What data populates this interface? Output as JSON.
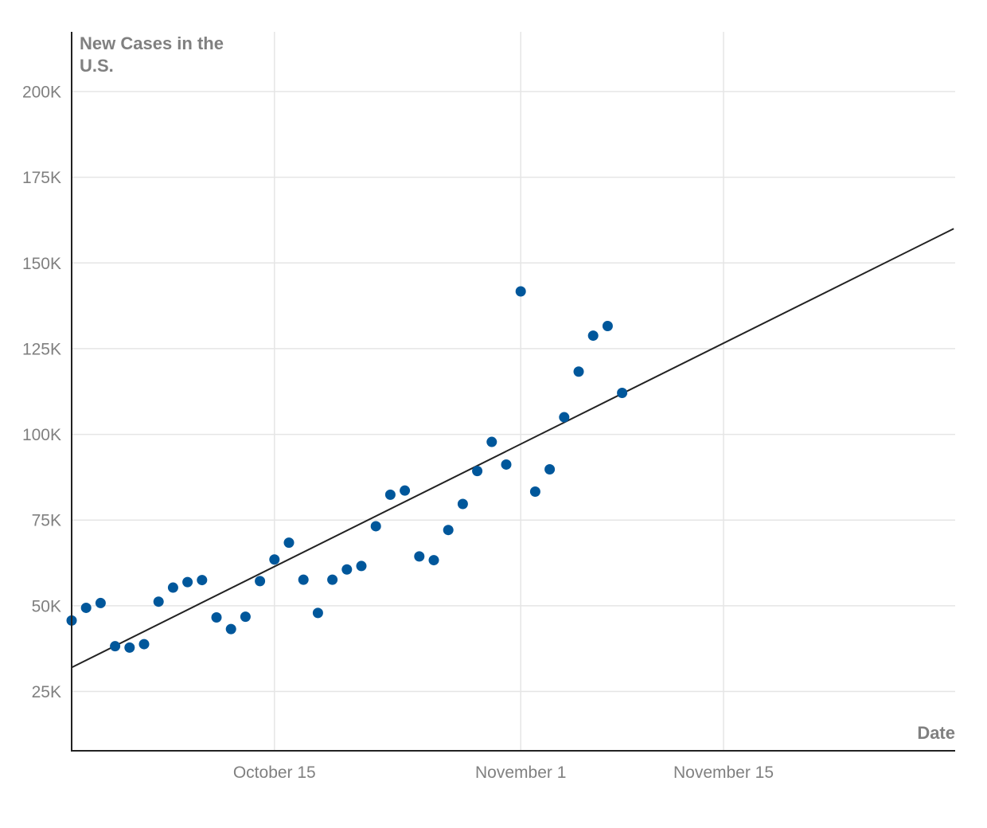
{
  "chart_data": {
    "type": "scatter",
    "title": "",
    "ylabel_lines": [
      "New Cases in the",
      "U.S."
    ],
    "xlabel": "Date",
    "x_range": [
      "2020-10-01",
      "2020-12-01"
    ],
    "ylim": [
      8000,
      215000
    ],
    "yticks": [
      {
        "value": 25000,
        "label": "25K"
      },
      {
        "value": 50000,
        "label": "50K"
      },
      {
        "value": 75000,
        "label": "75K"
      },
      {
        "value": 100000,
        "label": "100K"
      },
      {
        "value": 125000,
        "label": "125K"
      },
      {
        "value": 150000,
        "label": "150K"
      },
      {
        "value": 175000,
        "label": "175K"
      },
      {
        "value": 200000,
        "label": "200K"
      }
    ],
    "xticks": [
      {
        "date": "2020-10-15",
        "label": "October 15"
      },
      {
        "date": "2020-11-01",
        "label": "November 1"
      },
      {
        "date": "2020-11-15",
        "label": "November 15"
      }
    ],
    "point_color": "#00579b",
    "trend_color": "#222222",
    "trend": {
      "start": {
        "x": "2020-10-01",
        "y": 32000
      },
      "end": {
        "x": "2020-12-01",
        "y": 160000
      }
    },
    "points": [
      {
        "x": "2020-10-01",
        "y": 45700
      },
      {
        "x": "2020-10-02",
        "y": 49400
      },
      {
        "x": "2020-10-03",
        "y": 50800
      },
      {
        "x": "2020-10-04",
        "y": 38200
      },
      {
        "x": "2020-10-05",
        "y": 37800
      },
      {
        "x": "2020-10-06",
        "y": 38800
      },
      {
        "x": "2020-10-07",
        "y": 51200
      },
      {
        "x": "2020-10-08",
        "y": 55300
      },
      {
        "x": "2020-10-09",
        "y": 56900
      },
      {
        "x": "2020-10-10",
        "y": 57500
      },
      {
        "x": "2020-10-11",
        "y": 46600
      },
      {
        "x": "2020-10-12",
        "y": 43200
      },
      {
        "x": "2020-10-13",
        "y": 46800
      },
      {
        "x": "2020-10-14",
        "y": 57200
      },
      {
        "x": "2020-10-15",
        "y": 63500
      },
      {
        "x": "2020-10-16",
        "y": 68400
      },
      {
        "x": "2020-10-17",
        "y": 57600
      },
      {
        "x": "2020-10-18",
        "y": 47900
      },
      {
        "x": "2020-10-19",
        "y": 57600
      },
      {
        "x": "2020-10-20",
        "y": 60600
      },
      {
        "x": "2020-10-21",
        "y": 61600
      },
      {
        "x": "2020-10-22",
        "y": 73200
      },
      {
        "x": "2020-10-23",
        "y": 82400
      },
      {
        "x": "2020-10-24",
        "y": 83600
      },
      {
        "x": "2020-10-25",
        "y": 64400
      },
      {
        "x": "2020-10-26",
        "y": 63300
      },
      {
        "x": "2020-10-27",
        "y": 72100
      },
      {
        "x": "2020-10-28",
        "y": 79700
      },
      {
        "x": "2020-10-29",
        "y": 89300
      },
      {
        "x": "2020-10-30",
        "y": 97800
      },
      {
        "x": "2020-10-31",
        "y": 91200
      },
      {
        "x": "2020-11-01",
        "y": 141700
      },
      {
        "x": "2020-11-02",
        "y": 83300
      },
      {
        "x": "2020-11-03",
        "y": 89800
      },
      {
        "x": "2020-11-04",
        "y": 105000
      },
      {
        "x": "2020-11-05",
        "y": 118300
      },
      {
        "x": "2020-11-06",
        "y": 128800
      },
      {
        "x": "2020-11-07",
        "y": 131600
      },
      {
        "x": "2020-11-08",
        "y": 112100
      }
    ]
  }
}
